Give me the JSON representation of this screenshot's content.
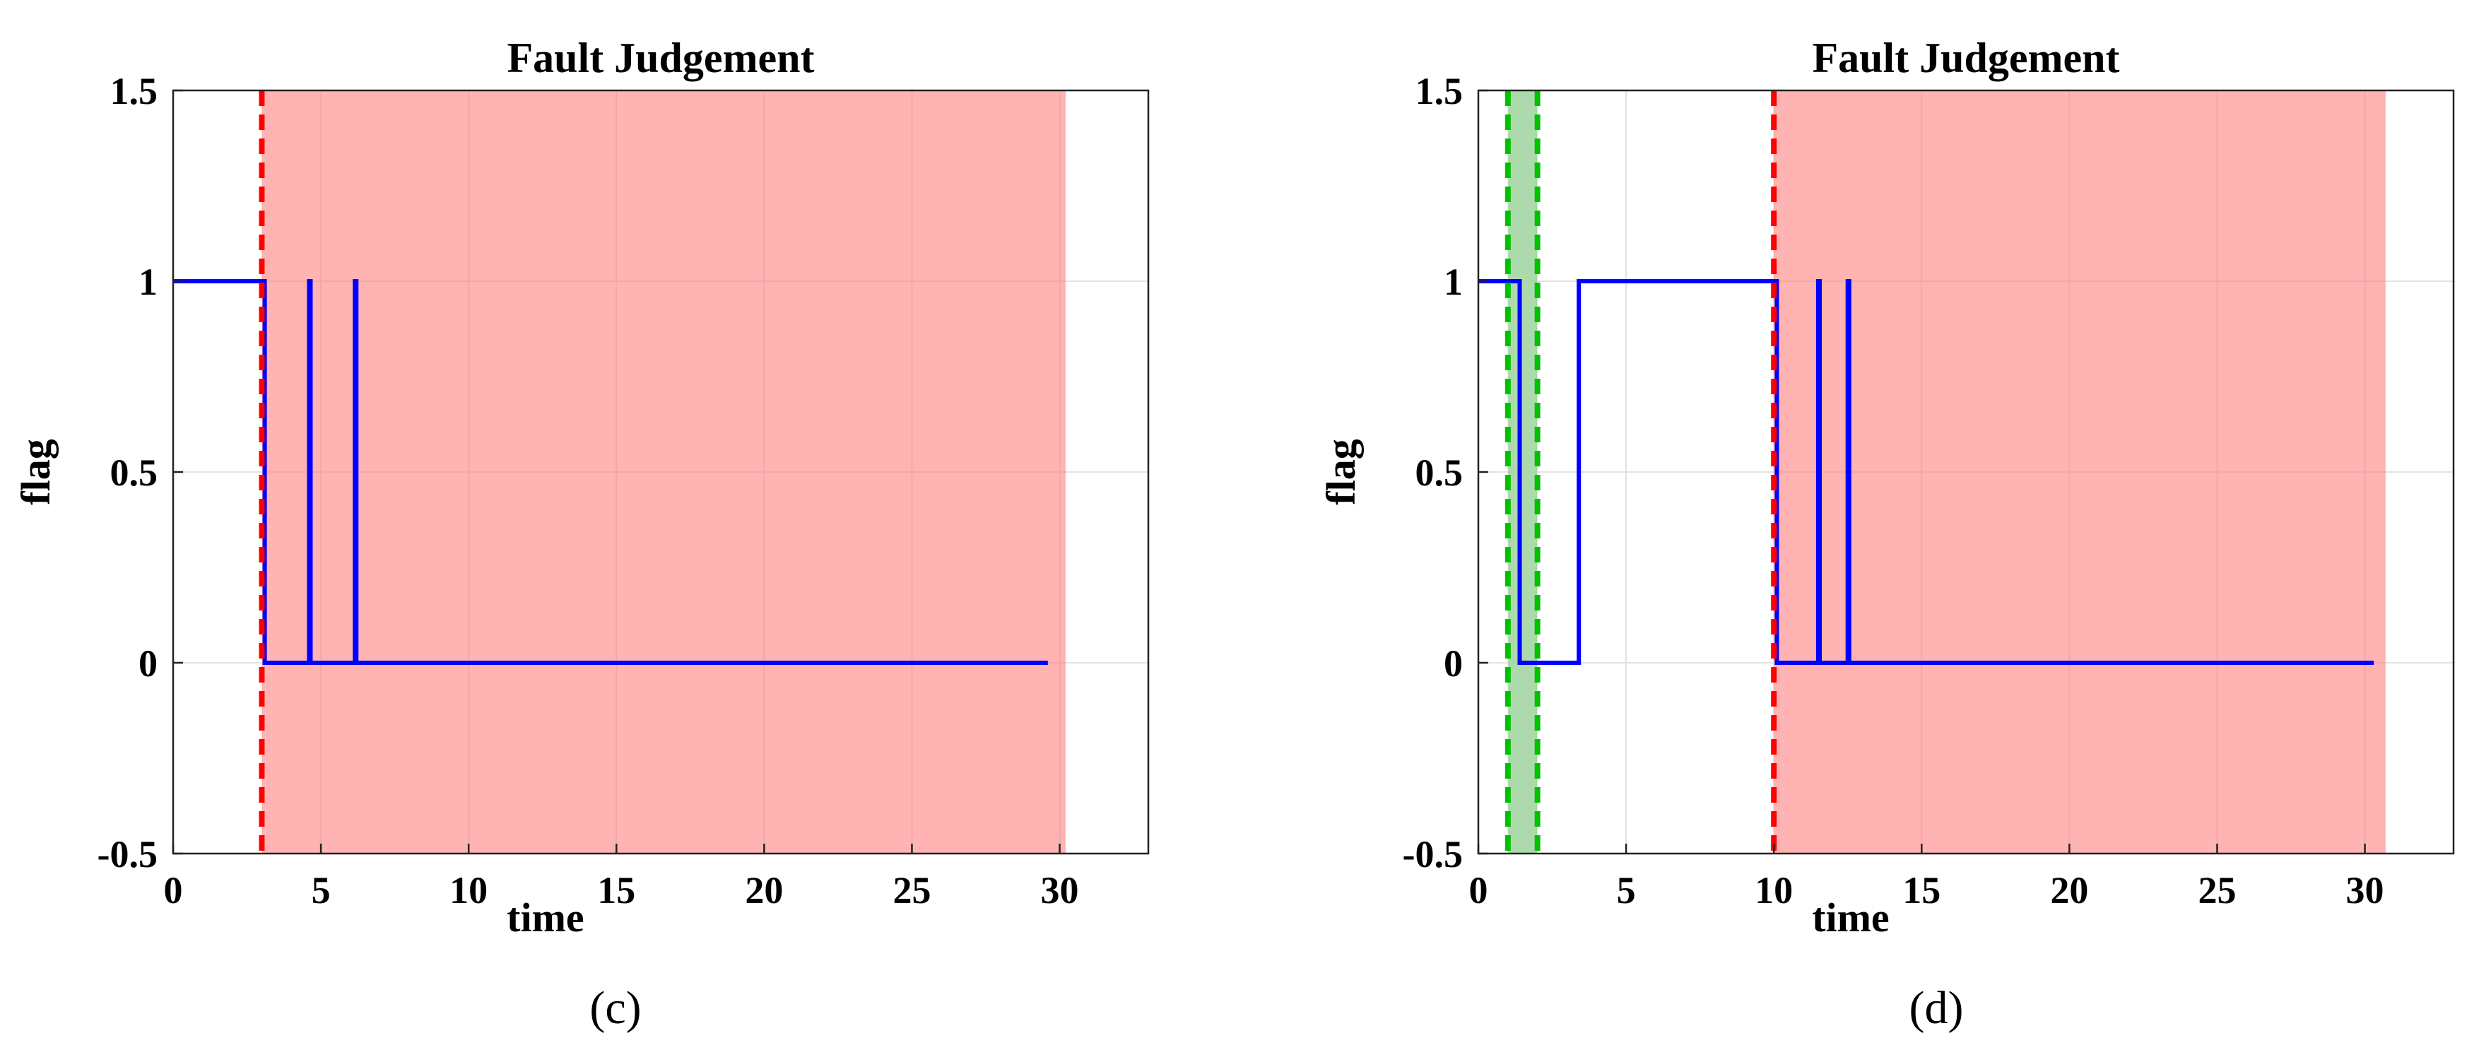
{
  "chart_data": [
    {
      "type": "line",
      "panel_label": "(c)",
      "title": "Fault Judgement",
      "xlabel": "time",
      "ylabel": "flag",
      "xlim": [
        0,
        33
      ],
      "ylim": [
        -0.5,
        1.5
      ],
      "xticks": [
        "0",
        "5",
        "10",
        "15",
        "20",
        "25",
        "30"
      ],
      "yticks": [
        "-0.5",
        "0",
        "0.5",
        "1",
        "1.5"
      ],
      "grid": true,
      "series": [
        {
          "color": "#0000ff",
          "x": [
            0,
            3.1,
            3.1,
            4.6,
            4.6,
            4.65,
            4.65,
            6.15,
            6.15,
            6.2,
            6.2,
            29.6
          ],
          "y": [
            1,
            1,
            0,
            0,
            1,
            1,
            0,
            0,
            1,
            1,
            0,
            0
          ]
        }
      ],
      "fault_region": {
        "x_start": 3.0,
        "x_end": 30.2,
        "color": "#ff8080"
      },
      "fault_line": {
        "x": 3.0,
        "color": "#ff0000"
      },
      "normal_region": null
    },
    {
      "type": "line",
      "panel_label": "(d)",
      "title": "Fault Judgement",
      "xlabel": "time",
      "ylabel": "flag",
      "xlim": [
        0,
        33
      ],
      "ylim": [
        -0.5,
        1.5
      ],
      "xticks": [
        "0",
        "5",
        "10",
        "15",
        "20",
        "25",
        "30"
      ],
      "yticks": [
        "-0.5",
        "0",
        "0.5",
        "1",
        "1.5"
      ],
      "grid": true,
      "series": [
        {
          "color": "#0000ff",
          "x": [
            0,
            1.4,
            1.4,
            3.4,
            3.4,
            10.1,
            10.1,
            11.5,
            11.5,
            11.55,
            11.55,
            12.5,
            12.5,
            12.55,
            12.55,
            30.3
          ],
          "y": [
            1,
            1,
            0,
            0,
            1,
            1,
            0,
            0,
            1,
            1,
            0,
            0,
            1,
            1,
            0,
            0
          ]
        }
      ],
      "fault_region": {
        "x_start": 10.0,
        "x_end": 30.7,
        "color": "#ff8080"
      },
      "fault_line": {
        "x": 10.0,
        "color": "#ff0000"
      },
      "normal_region": {
        "x_start": 1.0,
        "x_end": 2.0,
        "color": "#9fd39f",
        "line_color": "#00c000"
      }
    }
  ]
}
